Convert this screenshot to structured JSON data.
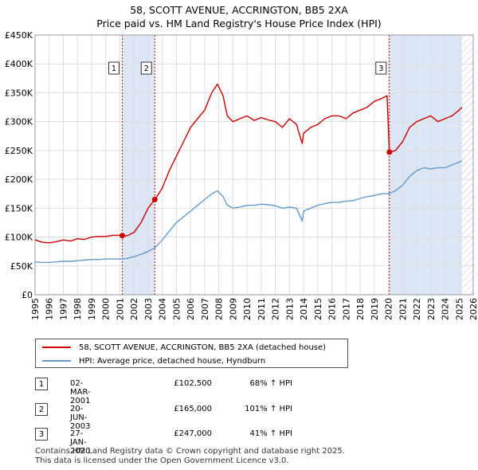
{
  "header": {
    "title": "58, SCOTT AVENUE, ACCRINGTON, BB5 2XA",
    "subtitle": "Price paid vs. HM Land Registry's House Price Index (HPI)"
  },
  "colors": {
    "property": "#cc0000",
    "hpi": "#6699cc",
    "shade": "#dce6f5",
    "grid": "#dddddd"
  },
  "chart_data": {
    "type": "line",
    "title": "58, SCOTT AVENUE, ACCRINGTON, BB5 2XA",
    "subtitle": "Price paid vs. HM Land Registry's House Price Index (HPI)",
    "xlim": [
      1995,
      2026
    ],
    "ylim": [
      0,
      450000
    ],
    "x_ticks": [
      1995,
      1996,
      1997,
      1998,
      1999,
      2000,
      2001,
      2002,
      2003,
      2004,
      2005,
      2006,
      2007,
      2008,
      2009,
      2010,
      2011,
      2012,
      2013,
      2014,
      2015,
      2016,
      2017,
      2018,
      2019,
      2020,
      2021,
      2022,
      2023,
      2024,
      2025,
      2026
    ],
    "y_ticks": [
      {
        "value": 0,
        "label": "£0"
      },
      {
        "value": 50000,
        "label": "£50K"
      },
      {
        "value": 100000,
        "label": "£100K"
      },
      {
        "value": 150000,
        "label": "£150K"
      },
      {
        "value": 200000,
        "label": "£200K"
      },
      {
        "value": 250000,
        "label": "£250K"
      },
      {
        "value": 300000,
        "label": "£300K"
      },
      {
        "value": 350000,
        "label": "£350K"
      },
      {
        "value": 400000,
        "label": "£400K"
      },
      {
        "value": 450000,
        "label": "£450K"
      }
    ],
    "series": [
      {
        "name": "58, SCOTT AVENUE, ACCRINGTON, BB5 2XA (detached house)",
        "color": "#cc0000",
        "x": [
          1995.0,
          1995.5,
          1996.0,
          1996.5,
          1997.0,
          1997.5,
          1998.0,
          1998.5,
          1999.0,
          1999.5,
          2000.0,
          2000.5,
          2001.0,
          2001.17,
          2001.5,
          2002.0,
          2002.5,
          2003.0,
          2003.47,
          2003.8,
          2004.0,
          2004.5,
          2005.0,
          2005.5,
          2006.0,
          2006.5,
          2007.0,
          2007.5,
          2007.9,
          2008.3,
          2008.6,
          2009.0,
          2009.5,
          2010.0,
          2010.5,
          2011.0,
          2011.5,
          2012.0,
          2012.5,
          2013.0,
          2013.5,
          2013.9,
          2014.0,
          2014.5,
          2015.0,
          2015.5,
          2016.0,
          2016.5,
          2017.0,
          2017.5,
          2018.0,
          2018.5,
          2019.0,
          2019.5,
          2019.9,
          2020.07,
          2020.5,
          2021.0,
          2021.5,
          2022.0,
          2022.5,
          2023.0,
          2023.5,
          2024.0,
          2024.5,
          2025.0,
          2025.2
        ],
        "y": [
          95000,
          91000,
          90000,
          92000,
          95000,
          93000,
          97000,
          96000,
          100000,
          101000,
          101000,
          103000,
          103000,
          102500,
          102000,
          108000,
          125000,
          150000,
          165000,
          177000,
          185000,
          215000,
          240000,
          265000,
          290000,
          305000,
          320000,
          350000,
          365000,
          345000,
          310000,
          300000,
          305000,
          310000,
          302000,
          307000,
          303000,
          300000,
          290000,
          305000,
          295000,
          262000,
          280000,
          290000,
          295000,
          305000,
          310000,
          310000,
          305000,
          315000,
          320000,
          325000,
          335000,
          340000,
          345000,
          247000,
          250000,
          265000,
          290000,
          300000,
          305000,
          310000,
          300000,
          305000,
          310000,
          320000,
          325000
        ]
      },
      {
        "name": "HPI: Average price, detached house, Hyndburn",
        "color": "#6699cc",
        "x": [
          1995.0,
          1995.5,
          1996.0,
          1996.5,
          1997.0,
          1997.5,
          1998.0,
          1998.5,
          1999.0,
          1999.5,
          2000.0,
          2000.5,
          2001.0,
          2001.5,
          2002.0,
          2002.5,
          2003.0,
          2003.5,
          2004.0,
          2004.5,
          2005.0,
          2005.5,
          2006.0,
          2006.5,
          2007.0,
          2007.5,
          2007.9,
          2008.3,
          2008.6,
          2009.0,
          2009.5,
          2010.0,
          2010.5,
          2011.0,
          2011.5,
          2012.0,
          2012.5,
          2013.0,
          2013.5,
          2013.9,
          2014.0,
          2014.5,
          2015.0,
          2015.5,
          2016.0,
          2016.5,
          2017.0,
          2017.5,
          2018.0,
          2018.5,
          2019.0,
          2019.5,
          2020.0,
          2020.5,
          2021.0,
          2021.5,
          2022.0,
          2022.5,
          2023.0,
          2023.5,
          2024.0,
          2024.5,
          2025.0,
          2025.2
        ],
        "y": [
          57000,
          56000,
          56000,
          57000,
          58000,
          58000,
          59000,
          60000,
          61000,
          61000,
          62000,
          62000,
          62000,
          63000,
          66000,
          70000,
          75000,
          82000,
          95000,
          110000,
          125000,
          135000,
          145000,
          155000,
          165000,
          175000,
          180000,
          170000,
          155000,
          150000,
          152000,
          155000,
          155000,
          157000,
          156000,
          154000,
          150000,
          152000,
          150000,
          128000,
          145000,
          150000,
          155000,
          158000,
          160000,
          160000,
          162000,
          163000,
          167000,
          170000,
          172000,
          175000,
          175000,
          180000,
          190000,
          205000,
          215000,
          220000,
          218000,
          220000,
          220000,
          225000,
          230000,
          232000
        ]
      }
    ],
    "transactions": [
      {
        "num": "1",
        "x": 2001.17,
        "price": 102500,
        "date": "02-MAR-2001",
        "price_label": "£102,500",
        "hpi": "68% ↑ HPI"
      },
      {
        "num": "2",
        "x": 2003.47,
        "price": 165000,
        "date": "20-JUN-2003",
        "price_label": "£165,000",
        "hpi": "101% ↑ HPI"
      },
      {
        "num": "3",
        "x": 2020.07,
        "price": 247000,
        "date": "27-JAN-2020",
        "price_label": "£247,000",
        "hpi": "41% ↑ HPI"
      }
    ],
    "shaded_spans": [
      [
        2001.17,
        2003.47
      ],
      [
        2020.07,
        2025.2
      ]
    ],
    "hatched_from": 2025.2
  },
  "legend": {
    "property_label": "58, SCOTT AVENUE, ACCRINGTON, BB5 2XA (detached house)",
    "hpi_label": "HPI: Average price, detached house, Hyndburn"
  },
  "footer": {
    "line1": "Contains HM Land Registry data © Crown copyright and database right 2025.",
    "line2": "This data is licensed under the Open Government Licence v3.0."
  }
}
